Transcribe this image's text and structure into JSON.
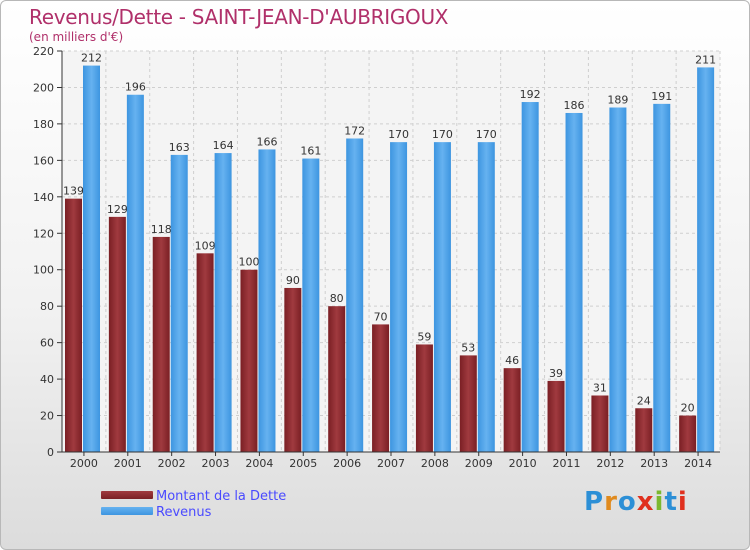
{
  "title": "Revenus/Dette - SAINT-JEAN-D'AUBRIGOUX",
  "subtitle": "(en milliers d'€)",
  "logo_text": "Proxiti",
  "colors": {
    "debt": "#7a1f24",
    "debt_light": "#a03a3f",
    "revenue": "#3d95e0",
    "revenue_light": "#66b2f0",
    "title": "#b0306a",
    "legend_text": "#4a4aff"
  },
  "chart_data": {
    "type": "bar",
    "title": "Revenus/Dette - SAINT-JEAN-D'AUBRIGOUX",
    "subtitle": "(en milliers d'€)",
    "categories": [
      "2000",
      "2001",
      "2002",
      "2003",
      "2004",
      "2005",
      "2006",
      "2007",
      "2008",
      "2009",
      "2010",
      "2011",
      "2012",
      "2013",
      "2014"
    ],
    "series": [
      {
        "name": "Montant de la Dette",
        "values": [
          139,
          129,
          118,
          109,
          100,
          90,
          80,
          70,
          59,
          53,
          46,
          39,
          31,
          24,
          20
        ]
      },
      {
        "name": "Revenus",
        "values": [
          212,
          196,
          163,
          164,
          166,
          161,
          172,
          170,
          170,
          170,
          192,
          186,
          189,
          191,
          211
        ]
      }
    ],
    "ylim": [
      0,
      220
    ],
    "yticks": [
      0,
      20,
      40,
      60,
      80,
      100,
      120,
      140,
      160,
      180,
      200,
      220
    ],
    "grid": true,
    "legend_position": "bottom-left"
  }
}
